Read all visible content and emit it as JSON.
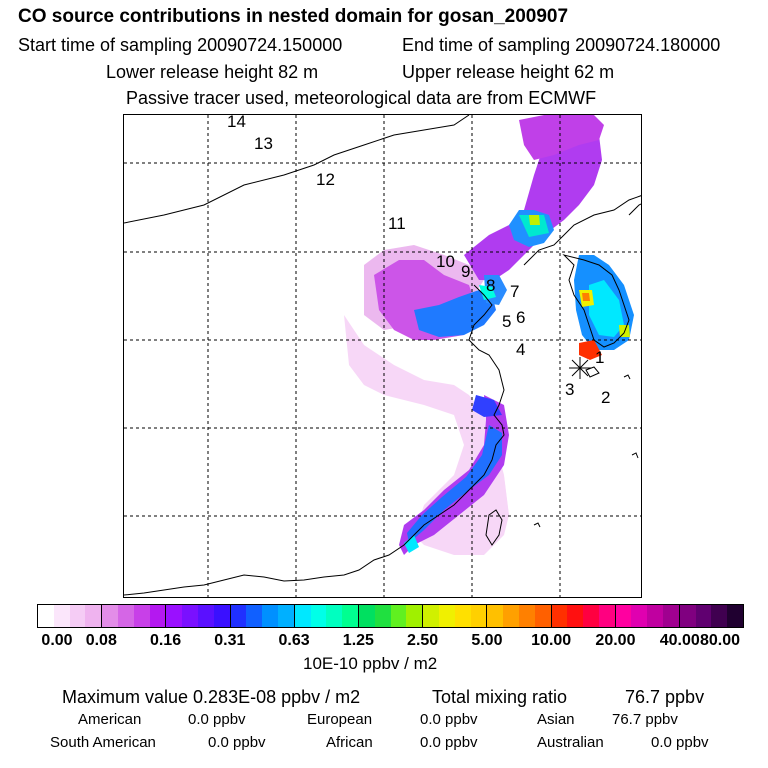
{
  "title": "CO  source contributions in nested domain for gosan_200907",
  "header": {
    "start_label": "Start time of sampling 20090724.150000",
    "end_label": "End time of sampling 20090724.180000",
    "lower_label": "Lower release height   82 m",
    "upper_label": "Upper release height   62 m",
    "note": "Passive tracer used, meteorological data are from ECMWF"
  },
  "map": {
    "region_labels": [
      "14",
      "13",
      "12",
      "11",
      "10",
      "9",
      "8",
      "7",
      "6",
      "5",
      "4",
      "3",
      "2",
      "1"
    ],
    "receptor_marker": "asterisk-icon"
  },
  "colorbar": {
    "ticks": [
      "0.00",
      "0.08",
      "0.16",
      "0.31",
      "0.63",
      "1.25",
      "2.50",
      "5.00",
      "10.00",
      "20.00",
      "40.00",
      "80.00"
    ],
    "colors": [
      "#ffffff",
      "#fbe6fb",
      "#f5ccf5",
      "#efb3ef",
      "#e38de8",
      "#d566e6",
      "#c840e8",
      "#b418f0",
      "#9a10ff",
      "#7a10ff",
      "#5a10ff",
      "#3a10ff",
      "#2030ff",
      "#1060ff",
      "#0090ff",
      "#00b0ff",
      "#00e8ff",
      "#00ffe8",
      "#00ffc0",
      "#00ff90",
      "#00e060",
      "#20e040",
      "#60f020",
      "#a0f000",
      "#d0f000",
      "#f0f000",
      "#ffe000",
      "#ffd000",
      "#ffc000",
      "#ffa000",
      "#ff8000",
      "#ff6000",
      "#ff3000",
      "#ff1010",
      "#ff0040",
      "#ff0080",
      "#ff00a0",
      "#e000b0",
      "#c000a0",
      "#a00090",
      "#800080",
      "#600070",
      "#400050",
      "#200030"
    ],
    "units": "10E-10 ppbv / m2"
  },
  "summary": {
    "max_label": "Maximum value  0.283E-08 ppbv / m2",
    "total_label": "Total mixing ratio",
    "total_value": "76.7 ppbv",
    "american_label": "American",
    "american_value": "0.0 ppbv",
    "european_label": "European",
    "european_value": "0.0 ppbv",
    "asian_label": "Asian",
    "asian_value": "76.7 ppbv",
    "south_american_label": "South American",
    "south_american_value": "0.0 ppbv",
    "african_label": "African",
    "african_value": "0.0 ppbv",
    "australian_label": "Australian",
    "australian_value": "0.0 ppbv"
  }
}
